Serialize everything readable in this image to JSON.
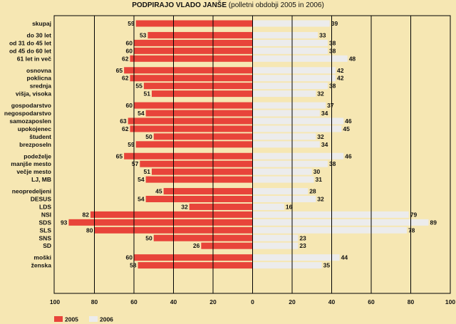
{
  "chart_data": {
    "type": "bar",
    "orientation": "horizontal-diverging",
    "title": "PODPIRAJO VLADO JANŠE",
    "subtitle": "(polletni obdobji 2005 in 2006)",
    "colors": {
      "2005": "#e8443a",
      "2006": "#ececec",
      "background": "#f6e7b3"
    },
    "x_ticks_left": [
      "100",
      "80",
      "60",
      "40",
      "20",
      "0"
    ],
    "x_ticks_right": [
      "20",
      "40",
      "60",
      "80",
      "100"
    ],
    "xlim": [
      0,
      100
    ],
    "grid": true,
    "legend": {
      "position": "bottom-left",
      "entries": [
        "2005",
        "2006"
      ]
    },
    "groups": [
      {
        "categories": [
          "skupaj"
        ],
        "v2005": [
          59
        ],
        "v2006": [
          39
        ]
      },
      {
        "categories": [
          "do 30 let",
          "od 31 do 45 let",
          "od 45 do 60 let",
          "61 let in več"
        ],
        "v2005": [
          53,
          60,
          60,
          62
        ],
        "v2006": [
          33,
          38,
          38,
          48
        ]
      },
      {
        "categories": [
          "osnovna",
          "poklicna",
          "srednja",
          "višja, visoka"
        ],
        "v2005": [
          65,
          62,
          55,
          51
        ],
        "v2006": [
          42,
          42,
          38,
          32
        ]
      },
      {
        "categories": [
          "gospodarstvo",
          "negospodarstvo",
          "samozaposlen",
          "upokojenec",
          "študent",
          "brezposeln"
        ],
        "v2005": [
          60,
          54,
          63,
          62,
          50,
          59
        ],
        "v2006": [
          37,
          34,
          46,
          45,
          32,
          34
        ]
      },
      {
        "categories": [
          "podeželje",
          "manjše mesto",
          "večje mesto",
          "LJ, MB"
        ],
        "v2005": [
          65,
          57,
          51,
          54
        ],
        "v2006": [
          46,
          38,
          30,
          31
        ]
      },
      {
        "categories": [
          "neopredeljeni",
          "DESUS",
          "LDS",
          "NSI",
          "SDS",
          "SLS",
          "SNS",
          "SD"
        ],
        "v2005": [
          45,
          54,
          32,
          82,
          93,
          80,
          50,
          26
        ],
        "v2006": [
          28,
          32,
          16,
          79,
          89,
          78,
          23,
          23
        ]
      },
      {
        "categories": [
          "moški",
          "ženska"
        ],
        "v2005": [
          60,
          58
        ],
        "v2006": [
          44,
          35
        ]
      }
    ]
  }
}
